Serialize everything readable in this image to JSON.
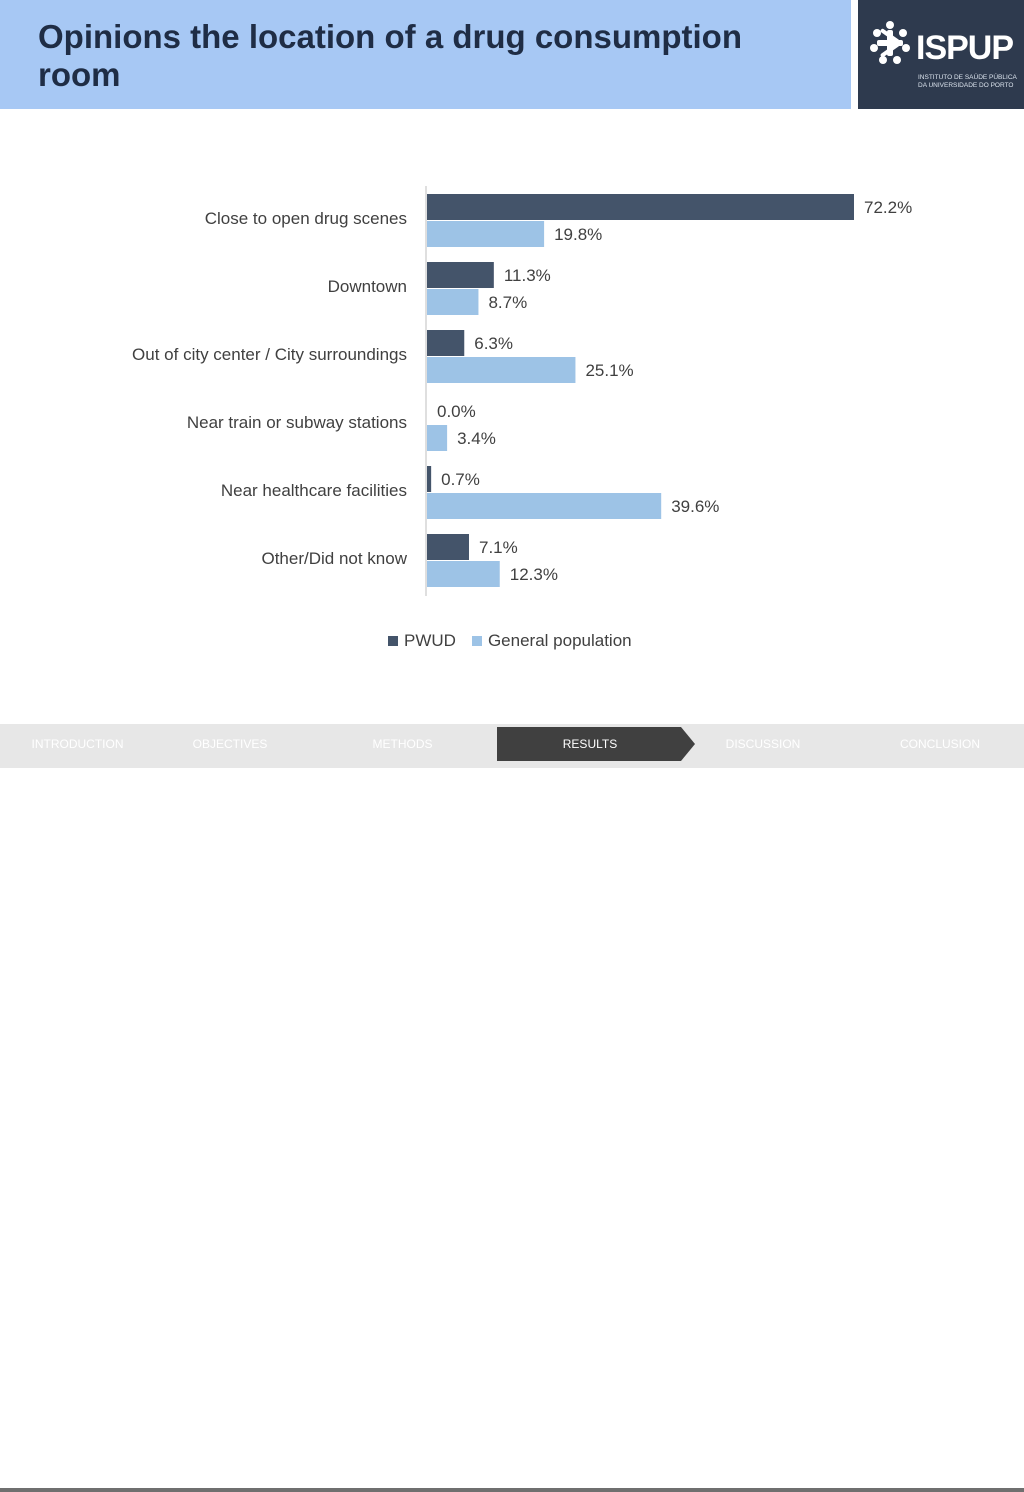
{
  "header": {
    "title": "Opinions the location of a drug consumption room"
  },
  "logo": {
    "name": "ISPUP",
    "subtitle_line1": "INSTITUTO DE SAÚDE PÚBLICA",
    "subtitle_line2": "DA UNIVERSIDADE DO PORTO"
  },
  "chart_data": {
    "type": "bar",
    "orientation": "horizontal",
    "categories": [
      "Close to open drug scenes",
      "Downtown",
      "Out of city center / City surroundings",
      "Near train or subway stations",
      "Near healthcare facilities",
      "Other/Did not know"
    ],
    "series": [
      {
        "name": "PWUD",
        "color": "#44546a",
        "values": [
          72.2,
          11.3,
          6.3,
          0.0,
          0.7,
          7.1
        ],
        "labels": [
          "72.2%",
          "11.3%",
          "6.3%",
          "0.0%",
          "0.7%",
          "7.1%"
        ]
      },
      {
        "name": "General population",
        "color": "#9dc3e6",
        "values": [
          19.8,
          8.7,
          25.1,
          3.4,
          39.6,
          12.3
        ],
        "labels": [
          "19.8%",
          "8.7%",
          "25.1%",
          "3.4%",
          "39.6%",
          "12.3%"
        ]
      }
    ],
    "xlim": [
      0,
      80
    ],
    "grid": false,
    "legend_position": "bottom"
  },
  "nav": {
    "items": [
      "INTRODUCTION",
      "OBJECTIVES",
      "METHODS",
      "RESULTS",
      "DISCUSSION",
      "CONCLUSION"
    ],
    "active": "RESULTS",
    "active_color": "#404040"
  }
}
